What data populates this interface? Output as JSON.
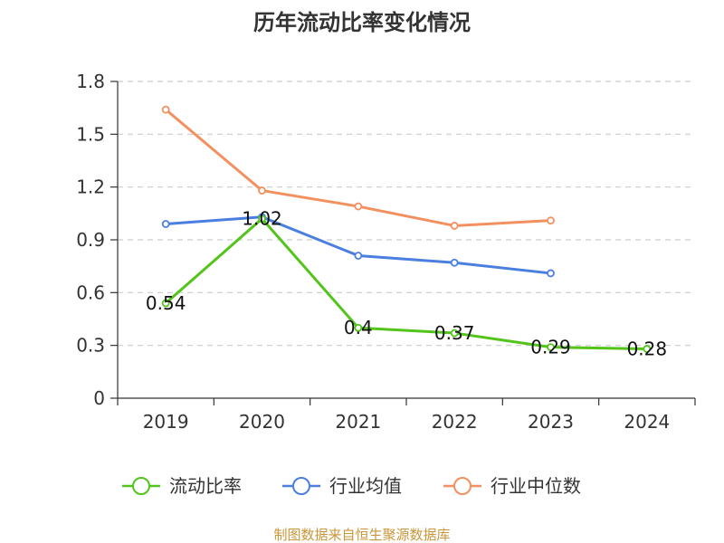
{
  "chart_data": {
    "type": "line",
    "title": "历年流动比率变化情况",
    "categories": [
      "2019",
      "2020",
      "2021",
      "2022",
      "2023",
      "2024"
    ],
    "ylim": [
      0,
      1.8
    ],
    "yticks": [
      "0",
      "0.3",
      "0.6",
      "0.9",
      "1.2",
      "1.5",
      "1.8"
    ],
    "grid": true,
    "legend_position": "bottom",
    "series": [
      {
        "name": "流动比率",
        "color": "#52c41a",
        "values": [
          0.54,
          1.02,
          0.4,
          0.37,
          0.29,
          0.28
        ],
        "labels": [
          "0.54",
          "1.02",
          "0.4",
          "0.37",
          "0.29",
          "0.28"
        ]
      },
      {
        "name": "行业均值",
        "color": "#4a7fe0",
        "values": [
          0.99,
          1.03,
          0.81,
          0.77,
          0.71,
          null
        ]
      },
      {
        "name": "行业中位数",
        "color": "#f39060",
        "values": [
          1.64,
          1.18,
          1.09,
          0.98,
          1.01,
          null
        ]
      }
    ],
    "source": "制图数据来自恒生聚源数据库"
  }
}
